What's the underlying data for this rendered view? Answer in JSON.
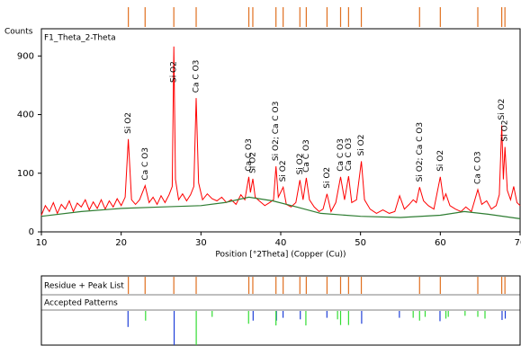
{
  "chart_data": {
    "type": "line",
    "title": "F1_Theta_2-Theta",
    "y_label": "Counts",
    "x_label": "Position [°2Theta] (Copper (Cu))",
    "xlim": [
      10,
      70
    ],
    "ylim": [
      0,
      1200
    ],
    "y_scale": "sqrt",
    "xticks": [
      10,
      20,
      30,
      40,
      50,
      60,
      70
    ],
    "yticks": [
      0,
      100,
      400,
      900
    ],
    "series": [
      {
        "color": "#ff0000",
        "x": [
          10,
          10.5,
          11,
          11.5,
          12,
          12.5,
          13,
          13.5,
          14,
          14.5,
          15,
          15.5,
          16,
          16.5,
          17,
          17.5,
          18,
          18.5,
          19,
          19.5,
          20,
          20.5,
          20.9,
          21.3,
          21.8,
          22.3,
          23.0,
          23.5,
          24,
          24.5,
          25,
          25.5,
          26,
          26.4,
          26.6,
          26.8,
          27.2,
          27.7,
          28.2,
          28.7,
          29.1,
          29.4,
          29.7,
          30.2,
          30.8,
          31.4,
          32,
          32.6,
          33.2,
          33.8,
          34.4,
          35,
          35.5,
          36.0,
          36.2,
          36.5,
          36.8,
          37.3,
          38,
          38.6,
          39.1,
          39.4,
          39.7,
          40.3,
          40.7,
          41.3,
          41.9,
          42.4,
          42.8,
          43.2,
          43.6,
          44.2,
          44.8,
          45.3,
          45.8,
          46.3,
          46.9,
          47.5,
          48.0,
          48.5,
          48.9,
          49.5,
          50.1,
          50.5,
          51.2,
          52,
          52.8,
          53.6,
          54.3,
          54.9,
          55.5,
          56.1,
          56.6,
          57.0,
          57.4,
          57.9,
          58.5,
          59.2,
          60.0,
          60.4,
          60.7,
          61.2,
          61.9,
          62.6,
          63.2,
          63.9,
          64.7,
          65.2,
          65.8,
          66.4,
          67,
          67.4,
          67.7,
          67.9,
          68.1,
          68.4,
          68.8,
          69.2,
          69.6,
          70
        ],
        "values": [
          8,
          20,
          12,
          25,
          10,
          22,
          15,
          28,
          12,
          24,
          18,
          30,
          14,
          26,
          16,
          30,
          15,
          28,
          18,
          32,
          20,
          35,
          250,
          30,
          22,
          30,
          62,
          25,
          35,
          22,
          38,
          25,
          40,
          60,
          1000,
          80,
          30,
          42,
          28,
          40,
          60,
          520,
          70,
          30,
          42,
          32,
          28,
          35,
          25,
          30,
          22,
          40,
          30,
          88,
          45,
          82,
          35,
          28,
          20,
          25,
          30,
          125,
          35,
          58,
          22,
          18,
          25,
          78,
          30,
          85,
          30,
          18,
          12,
          15,
          42,
          12,
          25,
          88,
          30,
          90,
          25,
          30,
          145,
          30,
          15,
          10,
          14,
          10,
          12,
          38,
          15,
          22,
          30,
          25,
          58,
          28,
          20,
          15,
          88,
          30,
          42,
          20,
          15,
          12,
          18,
          12,
          52,
          22,
          28,
          15,
          20,
          40,
          330,
          80,
          210,
          50,
          30,
          60,
          25,
          20
        ]
      },
      {
        "color": "#2e7d32",
        "x": [
          10,
          15,
          20,
          25,
          30,
          33,
          36,
          39,
          42,
          45,
          50,
          55,
          60,
          63,
          66,
          70
        ],
        "values": [
          7,
          12,
          16,
          18,
          20,
          25,
          35,
          28,
          18,
          10,
          7,
          6,
          8,
          12,
          9,
          5
        ]
      }
    ],
    "annotations": [
      {
        "x": 20.9,
        "text": "Si O2"
      },
      {
        "x": 23.0,
        "text": "Ca C O3"
      },
      {
        "x": 26.6,
        "text": "Si O2"
      },
      {
        "x": 29.4,
        "text": "Ca C O3"
      },
      {
        "x": 36.0,
        "text": "Ca C O3"
      },
      {
        "x": 36.5,
        "text": "Si O2"
      },
      {
        "x": 39.4,
        "text": "Si O2; Ca C O3"
      },
      {
        "x": 40.3,
        "text": "Si O2"
      },
      {
        "x": 42.4,
        "text": "Si O2"
      },
      {
        "x": 43.2,
        "text": "Ca C O3"
      },
      {
        "x": 45.8,
        "text": "Si O2"
      },
      {
        "x": 47.5,
        "text": "Ca C O3"
      },
      {
        "x": 48.5,
        "text": "Ca C O3"
      },
      {
        "x": 50.1,
        "text": "Si O2"
      },
      {
        "x": 57.4,
        "text": "Si O2; Ca C O3"
      },
      {
        "x": 60.0,
        "text": "Si O2"
      },
      {
        "x": 64.7,
        "text": "Ca C O3"
      },
      {
        "x": 67.7,
        "text": "Si O2"
      },
      {
        "x": 68.1,
        "text": "Si O2"
      }
    ],
    "peak_list": [
      20.9,
      23.0,
      26.6,
      29.4,
      36.0,
      36.5,
      39.4,
      40.3,
      42.4,
      43.2,
      45.8,
      47.5,
      48.5,
      50.1,
      57.4,
      60.0,
      64.7,
      67.7,
      68.1
    ],
    "panel_labels": [
      "Residue + Peak List",
      "Accepted Patterns"
    ],
    "patterns": [
      {
        "color": "#1f3fd8",
        "positions": [
          20.86,
          26.64,
          36.54,
          39.46,
          40.29,
          42.45,
          45.79,
          50.14,
          54.87,
          59.96,
          67.74,
          68.14
        ],
        "intensities": [
          22,
          100,
          8,
          8,
          4,
          6,
          4,
          14,
          4,
          9,
          7,
          5
        ]
      },
      {
        "color": "#33dd33",
        "positions": [
          23.06,
          29.41,
          31.4,
          35.97,
          39.4,
          43.15,
          47.12,
          47.5,
          48.5,
          56.6,
          57.4,
          58.1,
          60.7,
          61.0,
          63.1,
          64.7,
          65.6
        ],
        "intensities": [
          8,
          100,
          3,
          14,
          18,
          18,
          6,
          17,
          17,
          4,
          8,
          3,
          5,
          3,
          2,
          3,
          5
        ]
      }
    ],
    "peak_list_color": "#e07020"
  }
}
